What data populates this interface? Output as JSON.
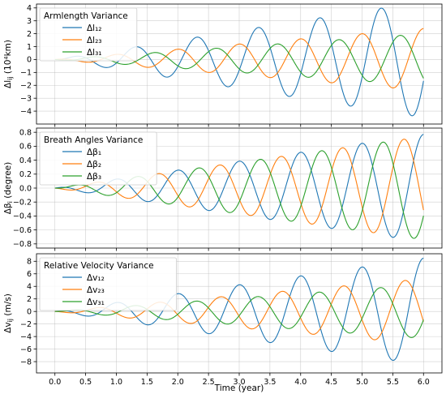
{
  "chart_data": [
    {
      "type": "line",
      "id": "armlength",
      "title": "Armlength Variance",
      "ylabel": "Δl_ij (10⁴km)",
      "ylim": [
        -5,
        4.3
      ],
      "yticks": [
        -4,
        -3,
        -2,
        -1,
        0,
        1,
        2,
        3,
        4
      ],
      "legend_location": "upper-left",
      "series": [
        {
          "name": "Δl₁₂",
          "color": "#1f77b4",
          "amplitude_end": 4.5,
          "peak_at_x": 5.31
        },
        {
          "name": "Δl₂₃",
          "color": "#ff7f0e",
          "amplitude_end": 2.4,
          "peak_at_x": 5.0
        },
        {
          "name": "Δl₃₁",
          "color": "#2ca02c",
          "amplitude_end": 2.0,
          "peak_at_x": 5.62
        }
      ]
    },
    {
      "type": "line",
      "id": "breath",
      "title": "Breath Angles Variance",
      "ylabel": "Δβ_i (degree)",
      "ylim": [
        -0.86,
        0.86
      ],
      "yticks": [
        -0.8,
        -0.6,
        -0.4,
        -0.2,
        0.0,
        0.2,
        0.4,
        0.6,
        0.8
      ],
      "legend_location": "upper-left",
      "series": [
        {
          "name": "Δβ₁",
          "color": "#1f77b4",
          "amplitude_end": 0.77,
          "peak_at_x": 6.0
        },
        {
          "name": "Δβ₂",
          "color": "#ff7f0e",
          "amplitude_end": 0.74,
          "peak_at_x": 5.68
        },
        {
          "name": "Δβ₃",
          "color": "#2ca02c",
          "amplitude_end": 0.74,
          "peak_at_x": 5.34
        }
      ]
    },
    {
      "type": "line",
      "id": "velocity",
      "title": "Relative Velocity Variance",
      "ylabel": "Δv_ij (m/s)",
      "ylim": [
        -9.8,
        9.2
      ],
      "yticks": [
        -8,
        -6,
        -4,
        -2,
        0,
        2,
        4,
        6,
        8
      ],
      "legend_location": "upper-left",
      "series": [
        {
          "name": "Δv₁₂",
          "color": "#1f77b4",
          "amplitude_end": 8.5,
          "peak_at_x": 6.0
        },
        {
          "name": "Δv₂₃",
          "color": "#ff7f0e",
          "amplitude_end": 5.2,
          "peak_at_x": 5.7
        },
        {
          "name": "Δv₃₁",
          "color": "#2ca02c",
          "amplitude_end": 4.3,
          "peak_at_x": 5.3
        }
      ]
    }
  ],
  "x_axis": {
    "label": "Time (year)",
    "xlim": [
      -0.3,
      6.3
    ],
    "ticks": [
      0.0,
      0.5,
      1.0,
      1.5,
      2.0,
      2.5,
      3.0,
      3.5,
      4.0,
      4.5,
      5.0,
      5.5,
      6.0
    ],
    "tick_labels": [
      "0.0",
      "0.5",
      "1.0",
      "1.5",
      "2.0",
      "2.5",
      "3.0",
      "3.5",
      "4.0",
      "4.5",
      "5.0",
      "5.5",
      "6.0"
    ]
  },
  "grid": true
}
